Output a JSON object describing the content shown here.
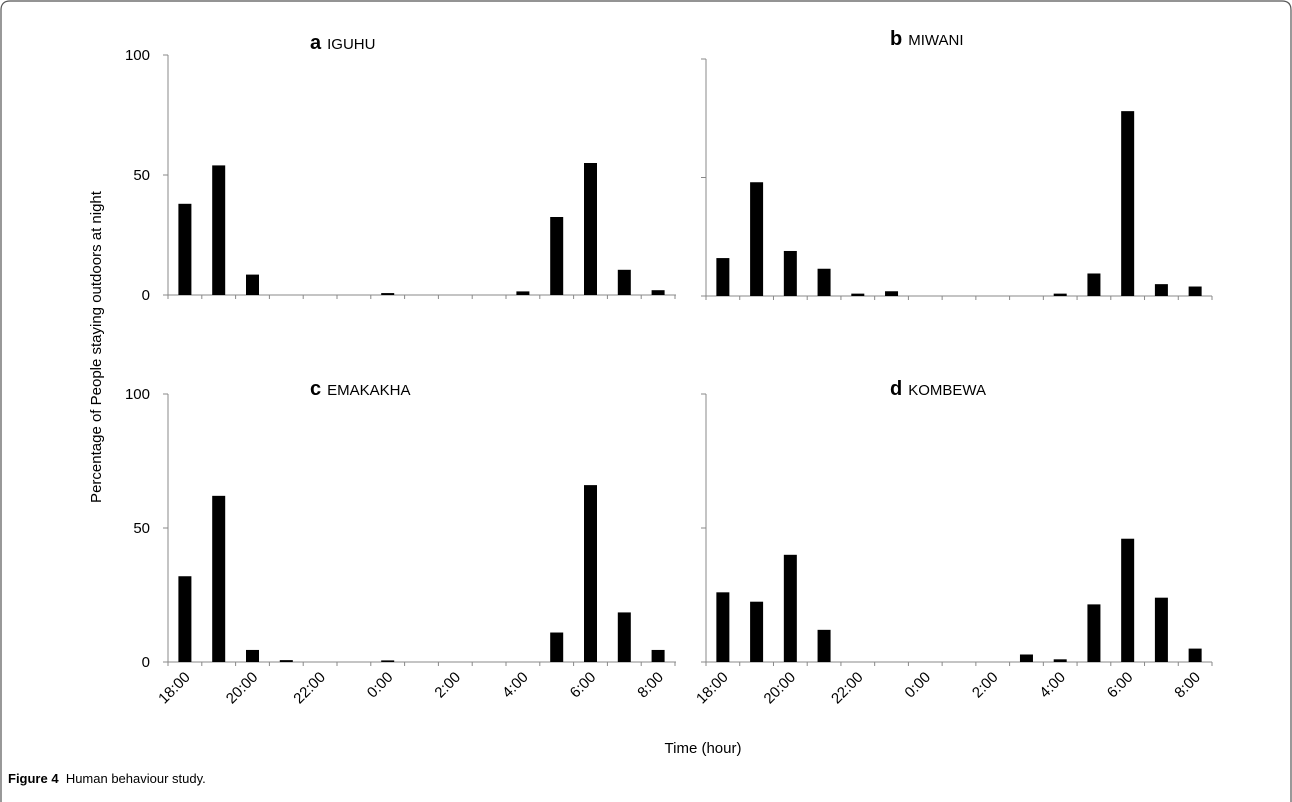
{
  "figure": {
    "caption_label": "Figure 4",
    "caption_text": "Human behaviour study."
  },
  "chart_data": {
    "type": "bar",
    "ylabel": "Percentage of People staying outdoors at night",
    "xlabel": "Time (hour)",
    "ylim": [
      0,
      100
    ],
    "yticks": [
      0,
      50,
      100
    ],
    "grid": false,
    "bar_color": "#000000",
    "x_tick_labels": [
      "18:00",
      "20:00",
      "22:00",
      "0:00",
      "2:00",
      "4:00",
      "6:00",
      "8:00"
    ],
    "categories": [
      "18:00",
      "19:00",
      "20:00",
      "21:00",
      "22:00",
      "23:00",
      "0:00",
      "1:00",
      "2:00",
      "3:00",
      "4:00",
      "5:00",
      "6:00",
      "7:00",
      "8:00"
    ],
    "panels": [
      {
        "letter": "a",
        "site": "IGUHU",
        "show_y_ticks": true,
        "values": [
          38,
          54,
          8.5,
          0,
          0,
          0,
          0.8,
          0,
          0,
          0,
          1.5,
          32.5,
          55,
          10.5,
          2
        ]
      },
      {
        "letter": "b",
        "site": "MIWANI",
        "show_y_ticks": false,
        "values": [
          16,
          48,
          19,
          11.5,
          1,
          2,
          0,
          0,
          0,
          0,
          1,
          9.5,
          78,
          5,
          4
        ]
      },
      {
        "letter": "c",
        "site": "EMAKAKHA",
        "show_y_ticks": true,
        "values": [
          32,
          62,
          4.5,
          0.7,
          0,
          0,
          0.6,
          0,
          0,
          0,
          0,
          11,
          66,
          18.5,
          4.5
        ]
      },
      {
        "letter": "d",
        "site": "KOMBEWA",
        "show_y_ticks": false,
        "values": [
          26,
          22.5,
          40,
          12,
          0,
          0,
          0,
          0,
          0,
          2.8,
          1,
          21.5,
          46,
          24,
          5
        ]
      }
    ]
  }
}
